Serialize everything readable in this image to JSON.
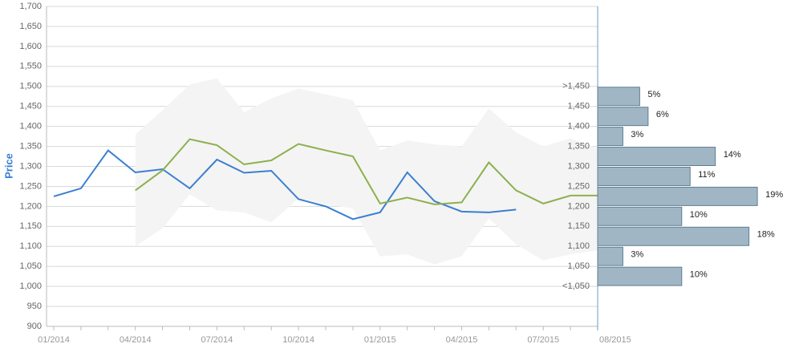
{
  "chart_data": [
    {
      "type": "line",
      "ylabel": "Price",
      "categories": [
        "01/2014",
        null,
        null,
        "04/2014",
        null,
        null,
        "07/2014",
        null,
        null,
        "10/2014",
        null,
        null,
        "01/2015",
        null,
        null,
        "04/2015",
        null,
        null,
        "07/2015",
        null,
        "08/2015"
      ],
      "series": [
        {
          "color": "#3a7fcf",
          "values": [
            1225,
            1245,
            1340,
            1285,
            1293,
            1245,
            1317,
            1284,
            1289,
            1218,
            1200,
            1168,
            1185,
            1285,
            1213,
            1187,
            1185,
            1192,
            null,
            null,
            null
          ]
        },
        {
          "color": "#8db04e",
          "values": [
            null,
            null,
            null,
            1240,
            1290,
            1368,
            1353,
            1305,
            1315,
            1356,
            1340,
            1325,
            1207,
            1222,
            1205,
            1210,
            1310,
            1240,
            1207,
            1227,
            1227
          ]
        }
      ],
      "band": {
        "color": "#f4f4f4",
        "upper": [
          null,
          null,
          null,
          1380,
          1440,
          1505,
          1520,
          1435,
          1470,
          1495,
          1480,
          1465,
          1340,
          1365,
          1355,
          1350,
          1445,
          1385,
          1350,
          1370,
          1345
        ],
        "lower": [
          null,
          null,
          null,
          1100,
          1145,
          1230,
          1190,
          1185,
          1160,
          1220,
          1205,
          1195,
          1075,
          1080,
          1055,
          1075,
          1170,
          1105,
          1065,
          1080,
          1090
        ]
      },
      "ylim": [
        900,
        1700
      ],
      "yticks": [
        {
          "value": 900,
          "label": "900"
        },
        {
          "value": 950,
          "label": "950"
        },
        {
          "value": 1000,
          "label": "1,000"
        },
        {
          "value": 1050,
          "label": "1,050"
        },
        {
          "value": 1100,
          "label": "1,100"
        },
        {
          "value": 1150,
          "label": "1,150"
        },
        {
          "value": 1200,
          "label": "1,200"
        },
        {
          "value": 1250,
          "label": "1,250"
        },
        {
          "value": 1300,
          "label": "1,300"
        },
        {
          "value": 1350,
          "label": "1,350"
        },
        {
          "value": 1400,
          "label": "1,400"
        },
        {
          "value": 1450,
          "label": "1,450"
        },
        {
          "value": 1500,
          "label": "1,500"
        },
        {
          "value": 1550,
          "label": "1,550"
        },
        {
          "value": 1600,
          "label": "1,600"
        },
        {
          "value": 1650,
          "label": "1,650"
        },
        {
          "value": 1700,
          "label": "1,700"
        }
      ],
      "grid": true
    },
    {
      "type": "histogram",
      "orientation": "horizontal",
      "color": "#a0b6c4",
      "bins": [
        {
          "value": 1000,
          "label": "<1,050"
        },
        {
          "value": 1050,
          "label": "1,050"
        },
        {
          "value": 1100,
          "label": "1,100"
        },
        {
          "value": 1150,
          "label": "1,150"
        },
        {
          "value": 1200,
          "label": "1,200"
        },
        {
          "value": 1250,
          "label": "1,250"
        },
        {
          "value": 1300,
          "label": "1,300"
        },
        {
          "value": 1350,
          "label": "1,350"
        },
        {
          "value": 1400,
          "label": "1,400"
        },
        {
          "value": 1450,
          "label": "1,450"
        },
        {
          "value": 1500,
          "label": ">1,450"
        }
      ],
      "values": [
        10,
        3,
        18,
        10,
        19,
        11,
        14,
        3,
        6,
        5
      ],
      "value_labels": [
        "10%",
        "3%",
        "18%",
        "10%",
        "19%",
        "11%",
        "14%",
        "3%",
        "6%",
        "5%"
      ],
      "xlim": [
        0,
        23
      ]
    }
  ]
}
